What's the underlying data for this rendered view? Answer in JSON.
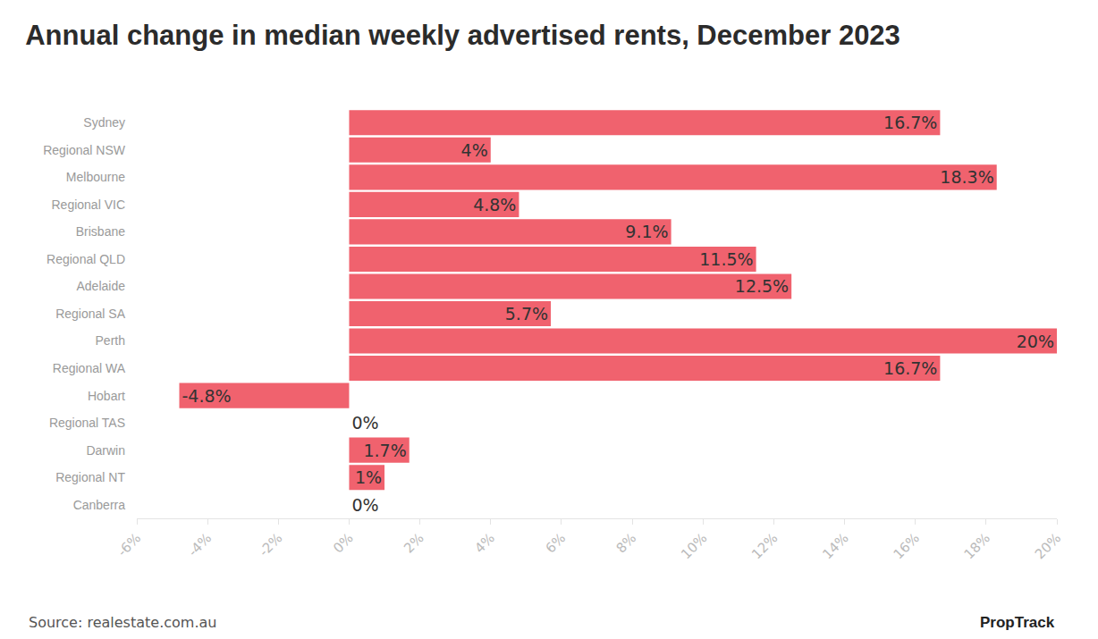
{
  "chart_data": {
    "type": "bar",
    "orientation": "horizontal",
    "title": "Annual change in median weekly advertised rents, December 2023",
    "annotations": [
      "Source: realestate.com.au",
      "PropTrack"
    ],
    "categories": [
      "Sydney",
      "Regional NSW",
      "Melbourne",
      "Regional VIC",
      "Brisbane",
      "Regional QLD",
      "Adelaide",
      "Regional SA",
      "Perth",
      "Regional WA",
      "Hobart",
      "Regional TAS",
      "Darwin",
      "Regional NT",
      "Canberra"
    ],
    "values": [
      16.7,
      4,
      18.3,
      4.8,
      9.1,
      11.5,
      12.5,
      5.7,
      20,
      16.7,
      -4.8,
      0,
      1.7,
      1,
      0
    ],
    "value_labels": [
      "16.7%",
      "4%",
      "18.3%",
      "4.8%",
      "9.1%",
      "11.5%",
      "12.5%",
      "5.7%",
      "20%",
      "16.7%",
      "-4.8%",
      "0%",
      "1.7%",
      "1%",
      "0%"
    ],
    "data_labels": true,
    "color": "#f0626e",
    "xlim": [
      -6,
      20
    ],
    "xticks": [
      {
        "value": -6,
        "label": "-6%"
      },
      {
        "value": -4,
        "label": "-4%"
      },
      {
        "value": -2,
        "label": "-2%"
      },
      {
        "value": 0,
        "label": "0%"
      },
      {
        "value": 2,
        "label": "2%"
      },
      {
        "value": 4,
        "label": "4%"
      },
      {
        "value": 6,
        "label": "6%"
      },
      {
        "value": 8,
        "label": "8%"
      },
      {
        "value": 10,
        "label": "10%"
      },
      {
        "value": 12,
        "label": "12%"
      },
      {
        "value": 14,
        "label": "14%"
      },
      {
        "value": 16,
        "label": "16%"
      },
      {
        "value": 18,
        "label": "18%"
      },
      {
        "value": 20,
        "label": "20%"
      }
    ],
    "grid": false
  }
}
